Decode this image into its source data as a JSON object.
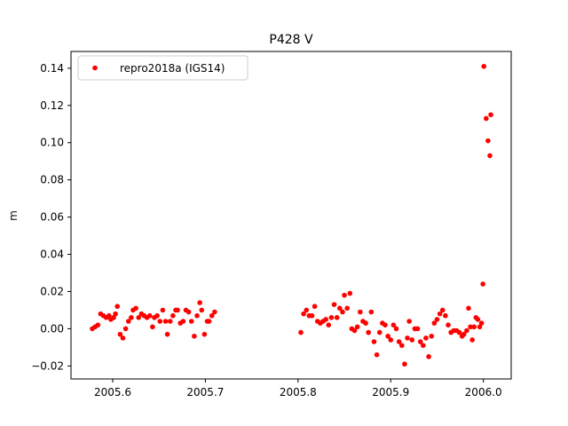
{
  "chart_data": {
    "type": "scatter",
    "title": "P428 V",
    "xlabel": "",
    "ylabel": "m",
    "xlim": [
      2005.555,
      2006.03
    ],
    "ylim": [
      -0.027,
      0.149
    ],
    "xticks": [
      2005.6,
      2005.7,
      2005.8,
      2005.9,
      2006.0
    ],
    "xtick_labels": [
      "2005.6",
      "2005.7",
      "2005.8",
      "2005.9",
      "2006.0"
    ],
    "yticks": [
      -0.02,
      0.0,
      0.02,
      0.04,
      0.06,
      0.08,
      0.1,
      0.12,
      0.14
    ],
    "ytick_labels": [
      "−0.02",
      "0.00",
      "0.02",
      "0.04",
      "0.06",
      "0.08",
      "0.10",
      "0.12",
      "0.14"
    ],
    "grid": false,
    "legend_position": "top-left",
    "series": [
      {
        "name": "repro2018a (IGS14)",
        "color": "#ff0000",
        "marker": "circle",
        "points": [
          [
            2005.578,
            0.0
          ],
          [
            2005.581,
            0.001
          ],
          [
            2005.584,
            0.002
          ],
          [
            2005.587,
            0.008
          ],
          [
            2005.59,
            0.007
          ],
          [
            2005.593,
            0.006
          ],
          [
            2005.596,
            0.007
          ],
          [
            2005.598,
            0.005
          ],
          [
            2005.601,
            0.006
          ],
          [
            2005.603,
            0.008
          ],
          [
            2005.605,
            0.012
          ],
          [
            2005.608,
            -0.003
          ],
          [
            2005.611,
            -0.005
          ],
          [
            2005.614,
            0.0
          ],
          [
            2005.617,
            0.004
          ],
          [
            2005.62,
            0.006
          ],
          [
            2005.622,
            0.01
          ],
          [
            2005.625,
            0.011
          ],
          [
            2005.628,
            0.006
          ],
          [
            2005.631,
            0.008
          ],
          [
            2005.634,
            0.007
          ],
          [
            2005.637,
            0.006
          ],
          [
            2005.64,
            0.007
          ],
          [
            2005.643,
            0.001
          ],
          [
            2005.645,
            0.006
          ],
          [
            2005.648,
            0.007
          ],
          [
            2005.651,
            0.004
          ],
          [
            2005.654,
            0.01
          ],
          [
            2005.657,
            0.004
          ],
          [
            2005.659,
            -0.003
          ],
          [
            2005.662,
            0.004
          ],
          [
            2005.665,
            0.007
          ],
          [
            2005.668,
            0.01
          ],
          [
            2005.67,
            0.01
          ],
          [
            2005.673,
            0.003
          ],
          [
            2005.676,
            0.004
          ],
          [
            2005.679,
            0.01
          ],
          [
            2005.682,
            0.009
          ],
          [
            2005.685,
            0.004
          ],
          [
            2005.688,
            -0.004
          ],
          [
            2005.691,
            0.007
          ],
          [
            2005.694,
            0.014
          ],
          [
            2005.696,
            0.01
          ],
          [
            2005.699,
            -0.003
          ],
          [
            2005.702,
            0.004
          ],
          [
            2005.704,
            0.004
          ],
          [
            2005.707,
            0.007
          ],
          [
            2005.71,
            0.009
          ],
          [
            2005.803,
            -0.002
          ],
          [
            2005.806,
            0.008
          ],
          [
            2005.809,
            0.01
          ],
          [
            2005.812,
            0.007
          ],
          [
            2005.815,
            0.007
          ],
          [
            2005.818,
            0.012
          ],
          [
            2005.821,
            0.004
          ],
          [
            2005.824,
            0.003
          ],
          [
            2005.827,
            0.004
          ],
          [
            2005.83,
            0.005
          ],
          [
            2005.833,
            0.002
          ],
          [
            2005.836,
            0.006
          ],
          [
            2005.839,
            0.013
          ],
          [
            2005.842,
            0.006
          ],
          [
            2005.845,
            0.011
          ],
          [
            2005.848,
            0.009
          ],
          [
            2005.85,
            0.018
          ],
          [
            2005.853,
            0.011
          ],
          [
            2005.856,
            0.019
          ],
          [
            2005.858,
            0.0
          ],
          [
            2005.861,
            -0.001
          ],
          [
            2005.864,
            0.001
          ],
          [
            2005.867,
            0.009
          ],
          [
            2005.87,
            0.004
          ],
          [
            2005.873,
            0.003
          ],
          [
            2005.876,
            -0.002
          ],
          [
            2005.879,
            0.009
          ],
          [
            2005.882,
            -0.007
          ],
          [
            2005.885,
            -0.014
          ],
          [
            2005.888,
            -0.002
          ],
          [
            2005.891,
            0.003
          ],
          [
            2005.894,
            0.002
          ],
          [
            2005.897,
            -0.004
          ],
          [
            2005.9,
            -0.006
          ],
          [
            2005.903,
            0.002
          ],
          [
            2005.906,
            0.0
          ],
          [
            2005.909,
            -0.007
          ],
          [
            2005.912,
            -0.009
          ],
          [
            2005.915,
            -0.019
          ],
          [
            2005.918,
            -0.005
          ],
          [
            2005.92,
            0.004
          ],
          [
            2005.923,
            -0.006
          ],
          [
            2005.926,
            0.0
          ],
          [
            2005.929,
            0.0
          ],
          [
            2005.932,
            -0.007
          ],
          [
            2005.935,
            -0.009
          ],
          [
            2005.938,
            -0.005
          ],
          [
            2005.941,
            -0.015
          ],
          [
            2005.944,
            -0.004
          ],
          [
            2005.947,
            0.003
          ],
          [
            2005.95,
            0.005
          ],
          [
            2005.953,
            0.008
          ],
          [
            2005.956,
            0.01
          ],
          [
            2005.959,
            0.007
          ],
          [
            2005.962,
            0.002
          ],
          [
            2005.965,
            -0.002
          ],
          [
            2005.968,
            -0.001
          ],
          [
            2005.971,
            -0.001
          ],
          [
            2005.974,
            -0.002
          ],
          [
            2005.977,
            -0.004
          ],
          [
            2005.979,
            -0.003
          ],
          [
            2005.982,
            -0.001
          ],
          [
            2005.984,
            0.011
          ],
          [
            2005.986,
            0.001
          ],
          [
            2005.988,
            -0.006
          ],
          [
            2005.99,
            0.001
          ],
          [
            2005.992,
            0.006
          ],
          [
            2005.994,
            0.005
          ],
          [
            2005.996,
            0.001
          ],
          [
            2005.998,
            0.003
          ],
          [
            2005.9995,
            0.024
          ],
          [
            2006.0005,
            0.141
          ],
          [
            2006.003,
            0.113
          ],
          [
            2006.005,
            0.101
          ],
          [
            2006.007,
            0.093
          ],
          [
            2006.008,
            0.115
          ]
        ]
      }
    ]
  }
}
